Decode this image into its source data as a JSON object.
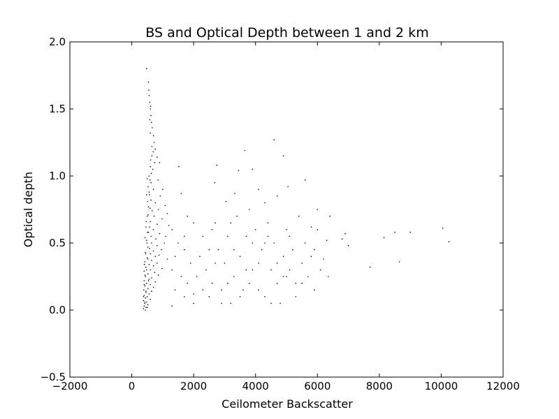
{
  "chart_data": {
    "type": "scatter",
    "title": "BS and Optical Depth between 1 and 2 km",
    "xlabel": "Ceilometer Backscatter",
    "ylabel": "Optical depth",
    "xlim": [
      -2000,
      12000
    ],
    "ylim": [
      -0.5,
      2.0
    ],
    "xticks": [
      -2000,
      0,
      2000,
      4000,
      6000,
      8000,
      10000,
      12000
    ],
    "xtick_labels": [
      "−2000",
      "0",
      "2000",
      "4000",
      "6000",
      "8000",
      "10000",
      "12000"
    ],
    "yticks": [
      -0.5,
      0.0,
      0.5,
      1.0,
      1.5,
      2.0
    ],
    "ytick_labels": [
      "−0.5",
      "0.0",
      "0.5",
      "1.0",
      "1.5",
      "2.0"
    ],
    "grid": false,
    "marker_color": "#000000",
    "series": [
      {
        "values": [
          [
            480,
            1.8
          ],
          [
            540,
            1.7
          ],
          [
            550,
            1.64
          ],
          [
            560,
            1.6
          ],
          [
            580,
            1.55
          ],
          [
            600,
            1.5
          ],
          [
            620,
            1.45
          ],
          [
            640,
            1.4
          ],
          [
            660,
            1.36
          ],
          [
            700,
            1.3
          ],
          [
            720,
            1.25
          ],
          [
            760,
            1.2
          ],
          [
            690,
            1.18
          ],
          [
            650,
            1.15
          ],
          [
            820,
            1.14
          ],
          [
            740,
            1.1
          ],
          [
            600,
            1.07
          ],
          [
            680,
            1.05
          ],
          [
            900,
            1.1
          ],
          [
            560,
            1.0
          ],
          [
            500,
            0.98
          ],
          [
            850,
            0.97
          ],
          [
            620,
            0.95
          ],
          [
            1000,
            0.9
          ],
          [
            700,
            0.9
          ],
          [
            560,
            0.88
          ],
          [
            480,
            0.86
          ],
          [
            920,
            0.85
          ],
          [
            620,
            0.82
          ],
          [
            760,
            0.8
          ],
          [
            1080,
            0.78
          ],
          [
            540,
            0.77
          ],
          [
            860,
            0.75
          ],
          [
            660,
            0.74
          ],
          [
            1150,
            0.72
          ],
          [
            500,
            0.7
          ],
          [
            720,
            0.7
          ],
          [
            980,
            0.68
          ],
          [
            600,
            0.66
          ],
          [
            820,
            0.64
          ],
          [
            1200,
            0.63
          ],
          [
            460,
            0.62
          ],
          [
            700,
            0.6
          ],
          [
            540,
            0.58
          ],
          [
            900,
            0.57
          ],
          [
            1100,
            0.55
          ],
          [
            620,
            0.55
          ],
          [
            780,
            0.53
          ],
          [
            480,
            0.52
          ],
          [
            1050,
            0.5
          ],
          [
            640,
            0.5
          ],
          [
            820,
            0.48
          ],
          [
            520,
            0.47
          ],
          [
            960,
            0.45
          ],
          [
            700,
            0.44
          ],
          [
            440,
            0.43
          ],
          [
            600,
            0.42
          ],
          [
            880,
            0.41
          ],
          [
            760,
            0.4
          ],
          [
            500,
            0.39
          ],
          [
            1150,
            0.38
          ],
          [
            640,
            0.37
          ],
          [
            420,
            0.36
          ],
          [
            820,
            0.35
          ],
          [
            560,
            0.34
          ],
          [
            700,
            0.33
          ],
          [
            460,
            0.32
          ],
          [
            980,
            0.31
          ],
          [
            600,
            0.3
          ],
          [
            400,
            0.29
          ],
          [
            740,
            0.28
          ],
          [
            520,
            0.27
          ],
          [
            860,
            0.26
          ],
          [
            440,
            0.25
          ],
          [
            640,
            0.24
          ],
          [
            560,
            0.23
          ],
          [
            400,
            0.22
          ],
          [
            760,
            0.21
          ],
          [
            480,
            0.2
          ],
          [
            600,
            0.19
          ],
          [
            420,
            0.18
          ],
          [
            700,
            0.17
          ],
          [
            520,
            0.16
          ],
          [
            390,
            0.15
          ],
          [
            640,
            0.14
          ],
          [
            460,
            0.13
          ],
          [
            560,
            0.12
          ],
          [
            400,
            0.11
          ],
          [
            500,
            0.1
          ],
          [
            440,
            0.09
          ],
          [
            600,
            0.08
          ],
          [
            380,
            0.07
          ],
          [
            480,
            0.06
          ],
          [
            420,
            0.05
          ],
          [
            520,
            0.04
          ],
          [
            400,
            0.03
          ],
          [
            460,
            0.02
          ],
          [
            380,
            0.01
          ],
          [
            440,
            0.0
          ],
          [
            500,
            0.02
          ],
          [
            420,
            0.06
          ],
          [
            380,
            0.1
          ],
          [
            460,
            0.14
          ],
          [
            400,
            0.19
          ],
          [
            540,
            0.22
          ],
          [
            430,
            0.26
          ],
          [
            480,
            0.3
          ],
          [
            410,
            0.34
          ],
          [
            520,
            0.38
          ],
          [
            450,
            0.42
          ],
          [
            570,
            0.46
          ],
          [
            490,
            0.5
          ],
          [
            430,
            0.54
          ],
          [
            510,
            0.58
          ],
          [
            580,
            0.62
          ],
          [
            470,
            0.66
          ],
          [
            530,
            0.71
          ],
          [
            590,
            0.76
          ],
          [
            510,
            0.81
          ],
          [
            570,
            0.86
          ],
          [
            530,
            0.92
          ],
          [
            590,
            0.97
          ],
          [
            630,
            1.02
          ],
          [
            610,
            1.12
          ],
          [
            650,
            1.22
          ],
          [
            600,
            1.32
          ],
          [
            580,
            1.42
          ],
          [
            610,
            1.52
          ],
          [
            1600,
            0.87
          ],
          [
            1800,
            0.7
          ],
          [
            2000,
            0.65
          ],
          [
            1300,
            0.6
          ],
          [
            1500,
            0.5
          ],
          [
            1700,
            0.45
          ],
          [
            1400,
            0.4
          ],
          [
            1900,
            0.35
          ],
          [
            1300,
            0.3
          ],
          [
            1600,
            0.25
          ],
          [
            1800,
            0.2
          ],
          [
            1400,
            0.15
          ],
          [
            1700,
            0.1
          ],
          [
            2000,
            0.05
          ],
          [
            1300,
            0.03
          ],
          [
            2200,
            0.4
          ],
          [
            2400,
            0.3
          ],
          [
            2300,
            0.55
          ],
          [
            2600,
            0.2
          ],
          [
            2500,
            0.1
          ],
          [
            2800,
            0.45
          ],
          [
            2700,
            0.65
          ],
          [
            3000,
            0.35
          ],
          [
            2900,
            0.15
          ],
          [
            3100,
            0.55
          ],
          [
            3300,
            0.25
          ],
          [
            3200,
            0.05
          ],
          [
            3500,
            0.4
          ],
          [
            3400,
            0.7
          ],
          [
            3700,
            0.3
          ],
          [
            3600,
            0.15
          ],
          [
            3900,
            0.5
          ],
          [
            3800,
            0.2
          ],
          [
            4100,
            0.35
          ],
          [
            4000,
            0.6
          ],
          [
            4300,
            0.1
          ],
          [
            4200,
            0.45
          ],
          [
            4500,
            0.3
          ],
          [
            4400,
            0.65
          ],
          [
            4700,
            0.2
          ],
          [
            4600,
            0.5
          ],
          [
            4900,
            0.4
          ],
          [
            4800,
            0.05
          ],
          [
            5100,
            0.3
          ],
          [
            5000,
            0.6
          ],
          [
            5300,
            0.2
          ],
          [
            5200,
            0.45
          ],
          [
            5500,
            0.35
          ],
          [
            5400,
            0.7
          ],
          [
            5700,
            0.25
          ],
          [
            5600,
            0.5
          ],
          [
            5900,
            0.15
          ],
          [
            5800,
            0.4
          ],
          [
            6100,
            0.3
          ],
          [
            6000,
            0.6
          ],
          [
            2100,
            0.25
          ],
          [
            2300,
            0.15
          ],
          [
            2500,
            0.45
          ],
          [
            2700,
            0.35
          ],
          [
            2900,
            0.05
          ],
          [
            3100,
            0.2
          ],
          [
            3300,
            0.45
          ],
          [
            3500,
            0.1
          ],
          [
            3700,
            0.55
          ],
          [
            3900,
            0.3
          ],
          [
            4100,
            0.15
          ],
          [
            4300,
            0.5
          ],
          [
            4500,
            0.05
          ],
          [
            4700,
            0.35
          ],
          [
            4900,
            0.25
          ],
          [
            5100,
            0.55
          ],
          [
            5300,
            0.1
          ],
          [
            5500,
            0.2
          ],
          [
            2600,
            0.6
          ],
          [
            3200,
            0.65
          ],
          [
            3800,
            0.75
          ],
          [
            4400,
            0.55
          ],
          [
            5000,
            0.25
          ],
          [
            1700,
            0.55
          ],
          [
            2000,
            0.12
          ],
          [
            4600,
            1.27
          ],
          [
            3650,
            1.19
          ],
          [
            4900,
            1.15
          ],
          [
            1520,
            1.07
          ],
          [
            2750,
            1.08
          ],
          [
            3450,
            1.04
          ],
          [
            3900,
            1.05
          ],
          [
            2680,
            0.95
          ],
          [
            3330,
            0.87
          ],
          [
            4100,
            0.9
          ],
          [
            5050,
            0.92
          ],
          [
            5600,
            0.97
          ],
          [
            4700,
            0.85
          ],
          [
            3050,
            0.81
          ],
          [
            4300,
            0.8
          ],
          [
            6000,
            0.75
          ],
          [
            6400,
            0.7
          ],
          [
            6900,
            0.57
          ],
          [
            5800,
            0.62
          ],
          [
            7000,
            0.48
          ],
          [
            6300,
            0.52
          ],
          [
            8150,
            0.54
          ],
          [
            8500,
            0.58
          ],
          [
            9000,
            0.58
          ],
          [
            10050,
            0.61
          ],
          [
            10250,
            0.51
          ],
          [
            8650,
            0.36
          ],
          [
            7700,
            0.32
          ],
          [
            6350,
            0.25
          ],
          [
            6800,
            0.53
          ],
          [
            5900,
            0.45
          ],
          [
            6200,
            0.38
          ]
        ]
      }
    ]
  }
}
